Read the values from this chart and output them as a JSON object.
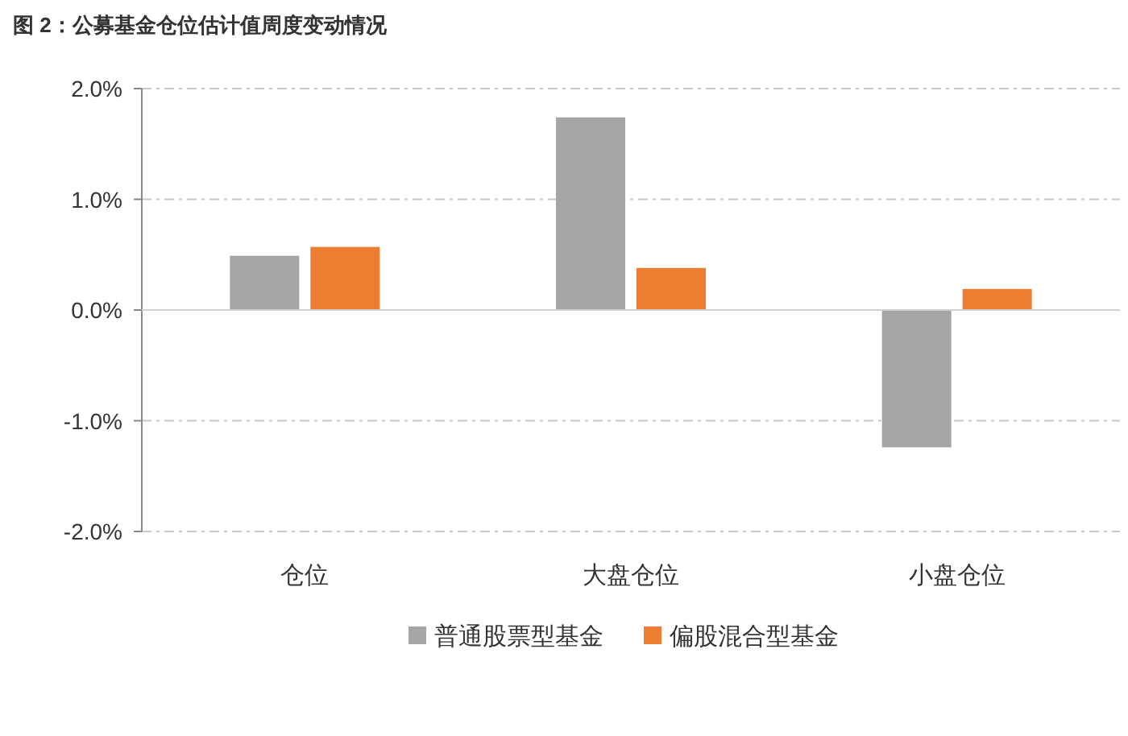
{
  "chart_data": {
    "type": "bar",
    "title": "图 2：公募基金仓位估计值周度变动情况",
    "categories": [
      "仓位",
      "大盘仓位",
      "小盘仓位"
    ],
    "series": [
      {
        "name": "普通股票型基金",
        "color": "#a5a5a5",
        "values": [
          0.49,
          1.74,
          -1.24
        ]
      },
      {
        "name": "偏股混合型基金",
        "color": "#ed7d31",
        "values": [
          0.57,
          0.38,
          0.19
        ]
      }
    ],
    "ylim": [
      -2,
      2
    ],
    "yticks": [
      {
        "value": -2,
        "label": "-2.0%"
      },
      {
        "value": -1,
        "label": "-1.0%"
      },
      {
        "value": 0,
        "label": "0.0%"
      },
      {
        "value": 1,
        "label": "1.0%"
      },
      {
        "value": 2,
        "label": "2.0%"
      }
    ],
    "grid": "y",
    "legend": "bottom"
  }
}
